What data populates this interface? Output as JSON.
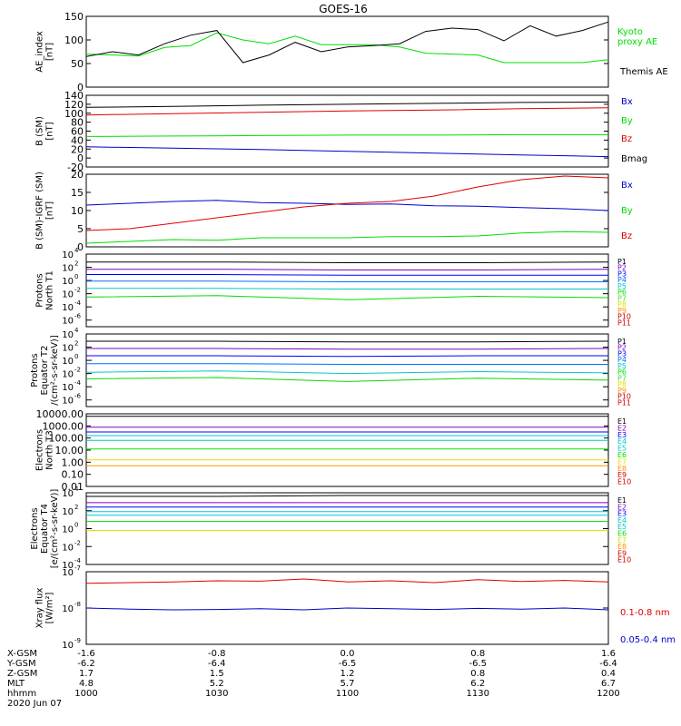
{
  "title": "GOES-16",
  "colors": {
    "black": "#000000",
    "green": "#00dd00",
    "blue": "#0000cc",
    "red": "#dd0000",
    "navy": "#0000ff",
    "purple": "#8000c0",
    "cyan": "#00c8c8",
    "yellow": "#e0e000",
    "orange": "#ff9000",
    "darkred": "#cc0000",
    "lightgreen": "#40e040"
  },
  "chart_data": [
    {
      "type": "line",
      "ylabel_lines": [
        "AE_index",
        "[nT]"
      ],
      "ylim": [
        0,
        150
      ],
      "yticks": [
        "0",
        "50",
        "100",
        "150"
      ],
      "x": [
        0,
        3,
        6,
        9,
        12,
        15,
        18,
        21,
        24,
        27,
        30,
        33,
        36,
        39,
        42,
        45,
        48,
        51,
        54,
        57,
        60
      ],
      "series": [
        {
          "name": "Kyoto proxy AE",
          "legend_lines": [
            "Kyoto",
            "proxy AE"
          ],
          "color": "#00dd00",
          "values": [
            70,
            68,
            66,
            84,
            88,
            115,
            100,
            92,
            108,
            90,
            90,
            90,
            85,
            72,
            70,
            68,
            52,
            52,
            52,
            52,
            58
          ]
        },
        {
          "name": "Themis AE",
          "legend_lines": [
            "Themis AE"
          ],
          "color": "#000000",
          "values": [
            65,
            75,
            68,
            92,
            110,
            120,
            52,
            68,
            95,
            75,
            85,
            88,
            92,
            118,
            125,
            122,
            98,
            130,
            108,
            120,
            138
          ]
        }
      ]
    },
    {
      "type": "line",
      "ylabel_lines": [
        "B (SM)",
        "[nT]"
      ],
      "ylim": [
        -20,
        140
      ],
      "yticks": [
        "-20",
        "0",
        "20",
        "40",
        "60",
        "80",
        "100",
        "120",
        "140"
      ],
      "x": [
        0,
        10,
        20,
        30,
        40,
        50,
        60
      ],
      "series": [
        {
          "name": "Bx",
          "color": "#0000cc",
          "values": [
            25,
            22,
            19,
            15,
            11,
            7,
            3
          ]
        },
        {
          "name": "By",
          "color": "#00dd00",
          "values": [
            48,
            49,
            50,
            51,
            51,
            52,
            52
          ]
        },
        {
          "name": "Bz",
          "color": "#dd0000",
          "values": [
            96,
            99,
            102,
            105,
            107,
            110,
            112
          ]
        },
        {
          "name": "Bmag",
          "color": "#000000",
          "values": [
            113,
            115,
            118,
            120,
            122,
            124,
            125
          ]
        }
      ]
    },
    {
      "type": "line",
      "ylabel_lines": [
        "B (SM)-IGRF (SM)",
        "[nT]"
      ],
      "ylim": [
        0,
        20
      ],
      "yticks": [
        "0",
        "5",
        "10",
        "15",
        "20"
      ],
      "x": [
        0,
        5,
        10,
        15,
        20,
        25,
        30,
        35,
        40,
        45,
        50,
        55,
        60
      ],
      "series": [
        {
          "name": "Bx",
          "color": "#0000cc",
          "values": [
            11.5,
            12,
            12.5,
            12.8,
            12.2,
            12,
            11.7,
            11.8,
            11.3,
            11.2,
            10.8,
            10.5,
            10
          ]
        },
        {
          "name": "By",
          "color": "#00dd00",
          "values": [
            1,
            1.5,
            2,
            1.8,
            2.5,
            2.5,
            2.5,
            2.8,
            2.8,
            3,
            3.8,
            4.2,
            4
          ]
        },
        {
          "name": "Bz",
          "color": "#dd0000",
          "values": [
            4.5,
            5,
            6.5,
            8,
            9.5,
            11,
            12,
            12.5,
            14,
            16.5,
            18.5,
            19.5,
            19
          ]
        }
      ]
    },
    {
      "type": "line",
      "ylabel_lines": [
        "Protons",
        "North T1"
      ],
      "ylim_log10": [
        -7,
        4
      ],
      "yticks_exp": [
        4,
        2,
        0,
        -2,
        -4,
        -6
      ],
      "legend": [
        "P1",
        "P2",
        "P3",
        "P4",
        "P5",
        "P6",
        "P7",
        "P8",
        "P9",
        "P10",
        "P11"
      ],
      "legend_colors": [
        "#000000",
        "#8000c0",
        "#0000ff",
        "#0070ff",
        "#00c8c8",
        "#00dd00",
        "#40e040",
        "#e0e000",
        "#ff9000",
        "#cc0000",
        "#cc0000"
      ],
      "series_log10": [
        {
          "name": "P1",
          "values": [
            2.8,
            2.8,
            2.7,
            2.7,
            2.8
          ]
        },
        {
          "name": "P2",
          "values": [
            1.7,
            1.7,
            1.6,
            1.6,
            1.7
          ]
        },
        {
          "name": "P3",
          "values": [
            0.9,
            0.9,
            0.8,
            0.8,
            0.8
          ]
        },
        {
          "name": "P4",
          "values": [
            -0.1,
            -0.1,
            -0.2,
            -0.2,
            -0.2
          ]
        },
        {
          "name": "P5",
          "values": [
            -1.2,
            -1.2,
            -1.3,
            -1.3,
            -1.3
          ]
        },
        {
          "name": "P6",
          "values": [
            -2.5,
            -2.3,
            -2.9,
            -2.4,
            -2.6
          ]
        }
      ]
    },
    {
      "type": "line",
      "ylabel_lines": [
        "Protons",
        "Equator T2",
        "/(cm²-s-sr-keV)]"
      ],
      "ylim_log10": [
        -7,
        4
      ],
      "yticks_exp": [
        4,
        2,
        0,
        -2,
        -4,
        -6
      ],
      "legend": [
        "P1",
        "P2",
        "P3",
        "P4",
        "P5",
        "P6",
        "P7",
        "P8",
        "P9",
        "P10",
        "P11"
      ],
      "legend_colors": [
        "#000000",
        "#8000c0",
        "#0000ff",
        "#0070ff",
        "#00c8c8",
        "#00dd00",
        "#40e040",
        "#e0e000",
        "#ff9000",
        "#cc0000",
        "#cc0000"
      ],
      "series_log10": [
        {
          "name": "P1",
          "values": [
            2.9,
            2.9,
            2.8,
            2.8,
            2.9
          ]
        },
        {
          "name": "P2",
          "values": [
            1.8,
            1.8,
            1.7,
            1.7,
            1.8
          ]
        },
        {
          "name": "P3",
          "values": [
            0.7,
            0.7,
            0.6,
            0.7,
            0.7
          ]
        },
        {
          "name": "P4",
          "values": [
            -0.5,
            -0.5,
            -0.6,
            -0.6,
            -0.6
          ]
        },
        {
          "name": "P5",
          "values": [
            -1.8,
            -1.6,
            -2.0,
            -1.7,
            -1.9
          ]
        },
        {
          "name": "P6",
          "values": [
            -2.8,
            -2.6,
            -3.2,
            -2.7,
            -3.0
          ]
        }
      ]
    },
    {
      "type": "line",
      "ylabel_lines": [
        "Electrons",
        "North T3"
      ],
      "ylim_log10": [
        -2,
        4
      ],
      "yticks": [
        "10000.00",
        "1000.00",
        "100.00",
        "10.00",
        "1.00",
        "0.10",
        "0.01"
      ],
      "legend": [
        "E1",
        "E2",
        "E3",
        "E4",
        "E5",
        "E6",
        "E7",
        "E8",
        "E9",
        "E10"
      ],
      "legend_colors": [
        "#000000",
        "#8000c0",
        "#0000ff",
        "#00c8c8",
        "#00c8c8",
        "#00dd00",
        "#e0e000",
        "#ff9000",
        "#cc0000",
        "#cc0000"
      ],
      "series_log10": [
        {
          "name": "E1",
          "values": [
            3.8,
            3.8,
            3.8,
            3.8,
            3.8
          ]
        },
        {
          "name": "E2",
          "values": [
            2.9,
            2.9,
            2.9,
            2.9,
            2.9
          ]
        },
        {
          "name": "E3",
          "values": [
            2.5,
            2.5,
            2.5,
            2.5,
            2.5
          ]
        },
        {
          "name": "E4",
          "values": [
            2.2,
            2.2,
            2.2,
            2.2,
            2.2
          ]
        },
        {
          "name": "E5",
          "values": [
            1.8,
            1.8,
            1.8,
            1.8,
            1.8
          ]
        },
        {
          "name": "E6",
          "values": [
            1.1,
            1.1,
            1.1,
            1.1,
            1.1
          ]
        },
        {
          "name": "E7",
          "values": [
            0.2,
            0.2,
            0.2,
            0.2,
            0.2
          ]
        },
        {
          "name": "E8",
          "values": [
            -0.3,
            -0.3,
            -0.3,
            -0.3,
            -0.3
          ]
        }
      ]
    },
    {
      "type": "line",
      "ylabel_lines": [
        "Electrons",
        "Equator T4",
        "[e/(cm²-s-sr-keV)]"
      ],
      "ylim_log10": [
        -4,
        4
      ],
      "yticks_exp": [
        4,
        2,
        0,
        -2,
        -4
      ],
      "legend": [
        "E1",
        "E2",
        "E3",
        "E4",
        "E5",
        "E6",
        "E7",
        "E8",
        "E9",
        "E10"
      ],
      "legend_colors": [
        "#000000",
        "#8000c0",
        "#0000ff",
        "#00c8c8",
        "#00c8c8",
        "#00dd00",
        "#e0e000",
        "#ff9000",
        "#cc0000",
        "#cc0000"
      ],
      "series_log10": [
        {
          "name": "E1",
          "values": [
            3.6,
            3.6,
            3.7,
            3.7,
            3.7
          ]
        },
        {
          "name": "E2",
          "values": [
            2.9,
            2.9,
            2.9,
            2.9,
            2.9
          ]
        },
        {
          "name": "E3",
          "values": [
            2.4,
            2.4,
            2.4,
            2.4,
            2.4
          ]
        },
        {
          "name": "E4",
          "values": [
            1.9,
            1.9,
            1.9,
            1.9,
            1.9
          ]
        },
        {
          "name": "E5",
          "values": [
            1.5,
            1.5,
            1.5,
            1.5,
            1.5
          ]
        },
        {
          "name": "E6",
          "values": [
            0.8,
            0.8,
            0.8,
            0.8,
            0.8
          ]
        },
        {
          "name": "E7",
          "values": [
            -0.2,
            -0.2,
            -0.2,
            -0.2,
            -0.2
          ]
        }
      ]
    },
    {
      "type": "line",
      "ylabel_lines": [
        "Xray flux",
        "[W/m²]"
      ],
      "ylim_log10": [
        -9,
        -7
      ],
      "yticks_exp": [
        -7,
        -8,
        -9
      ],
      "series_log10": [
        {
          "name": "0.1-0.8 nm",
          "legend_lines": [
            "0.1-0.8 nm"
          ],
          "color": "#dd0000",
          "values": [
            -7.32,
            -7.3,
            -7.28,
            -7.25,
            -7.26,
            -7.2,
            -7.28,
            -7.25,
            -7.3,
            -7.22,
            -7.27,
            -7.24,
            -7.28
          ]
        },
        {
          "name": "0.05-0.4 nm",
          "legend_lines": [
            "0.05-0.4 nm"
          ],
          "color": "#0000cc",
          "values": [
            -8.0,
            -8.03,
            -8.05,
            -8.04,
            -8.02,
            -8.05,
            -8.0,
            -8.02,
            -8.04,
            -8.01,
            -8.03,
            -8.0,
            -8.05
          ]
        }
      ]
    }
  ],
  "xaxis": {
    "rows": [
      {
        "label": "X-GSM",
        "values": [
          "-1.6",
          "-0.8",
          "0.0",
          "0.8",
          "1.6"
        ]
      },
      {
        "label": "Y-GSM",
        "values": [
          "-6.2",
          "-6.4",
          "-6.5",
          "-6.5",
          "-6.4"
        ]
      },
      {
        "label": "Z-GSM",
        "values": [
          "1.7",
          "1.5",
          "1.2",
          "0.8",
          "0.4"
        ]
      },
      {
        "label": "MLT",
        "values": [
          "4.8",
          "5.2",
          "5.7",
          "6.2",
          "6.7"
        ]
      },
      {
        "label": "hhmm",
        "values": [
          "1000",
          "1030",
          "1100",
          "1130",
          "1200"
        ]
      }
    ],
    "date": "2020 Jun 07"
  }
}
